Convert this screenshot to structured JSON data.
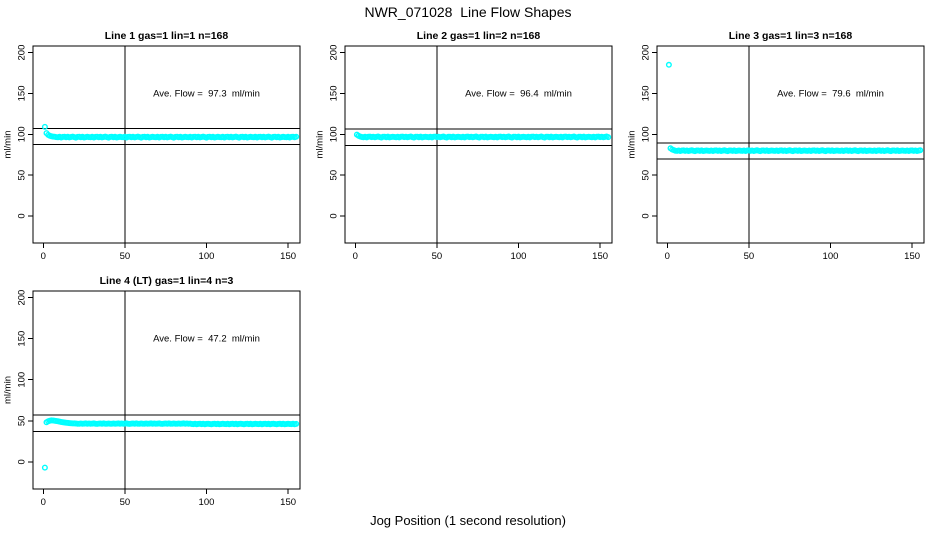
{
  "page": {
    "title": "NWR_071028  Line Flow Shapes",
    "x_axis_label": "Jog Position (1 second resolution)"
  },
  "colors": {
    "points": "#00ffff",
    "axis": "#000000",
    "background": "#ffffff"
  },
  "chart_data": [
    {
      "type": "scatter",
      "title": "Line 1 gas=1 lin=1 n=168",
      "annotation": "Ave. Flow =  97.3  ml/min",
      "ave_flow_ml_min": 97.3,
      "ylabel": "ml/min",
      "x_ticks": [
        0,
        50,
        100,
        150
      ],
      "y_ticks": [
        0,
        50,
        100,
        150,
        200
      ],
      "xlim": [
        -6.3,
        157.3
      ],
      "ylim": [
        -33,
        208
      ],
      "ref_lines_h": [
        107.3,
        87.3
      ],
      "ref_line_v": 50,
      "annotation_pos": [
        100,
        150
      ],
      "point_color": "#00ffff",
      "x_start": 1,
      "x_step": 1,
      "y": [
        109.0,
        101.5,
        99.2,
        98.2,
        97.6,
        97.2,
        96.9,
        96.6,
        96.3,
        97.0,
        96.1,
        96.8,
        97.1,
        96.4,
        96.9,
        96.2,
        96.7,
        97.2,
        96.5,
        96.0,
        96.8,
        97.0,
        96.3,
        97.1,
        96.1,
        96.6,
        96.9,
        96.6,
        96.3,
        97.0,
        96.1,
        96.8,
        97.1,
        96.4,
        96.9,
        96.2,
        96.7,
        97.2,
        96.5,
        96.0,
        96.8,
        97.0,
        96.3,
        97.1,
        96.1,
        96.6,
        96.9,
        96.6,
        96.3,
        97.0,
        96.1,
        96.8,
        97.1,
        96.4,
        96.9,
        96.2,
        96.7,
        97.2,
        96.5,
        96.0,
        96.8,
        97.0,
        96.3,
        97.1,
        96.1,
        96.6,
        96.9,
        96.6,
        96.3,
        97.0,
        96.1,
        96.8,
        97.1,
        96.4,
        96.9,
        96.2,
        96.7,
        97.2,
        96.5,
        96.0,
        96.8,
        97.0,
        96.3,
        97.1,
        96.1,
        96.6,
        96.9,
        96.6,
        96.3,
        97.0,
        96.1,
        96.8,
        97.1,
        96.4,
        96.9,
        96.2,
        96.7,
        97.2,
        96.5,
        96.0,
        96.8,
        97.0,
        96.3,
        97.1,
        96.1,
        96.6,
        96.9,
        96.6,
        96.3,
        97.0,
        96.1,
        96.8,
        97.1,
        96.4,
        96.9,
        96.2,
        96.7,
        97.2,
        96.5,
        96.0,
        96.8,
        97.0,
        96.3,
        97.1,
        96.1,
        96.6,
        96.9,
        96.6,
        96.3,
        97.0,
        96.1,
        96.8,
        97.1,
        96.4,
        96.9,
        96.2,
        96.7,
        97.2,
        96.5,
        96.0,
        96.8,
        97.0,
        96.3,
        97.1,
        96.1,
        96.6,
        96.9,
        96.6,
        96.3,
        97.0,
        96.1,
        96.8,
        97.1,
        96.4,
        96.9
      ]
    },
    {
      "type": "scatter",
      "title": "Line 2 gas=1 lin=2 n=168",
      "annotation": "Ave. Flow =  96.4  ml/min",
      "ave_flow_ml_min": 96.4,
      "ylabel": "ml/min",
      "x_ticks": [
        0,
        50,
        100,
        150
      ],
      "y_ticks": [
        0,
        50,
        100,
        150,
        200
      ],
      "xlim": [
        -6.3,
        157.3
      ],
      "ylim": [
        -33,
        208
      ],
      "ref_lines_h": [
        106.4,
        86.4
      ],
      "ref_line_v": 50,
      "annotation_pos": [
        100,
        150
      ],
      "point_color": "#00ffff",
      "x_start": 1,
      "x_step": 1,
      "y": [
        99.6,
        98.2,
        97.3,
        96.7,
        96.4,
        97.1,
        96.2,
        96.9,
        97.2,
        96.5,
        97.0,
        96.3,
        96.8,
        97.3,
        96.6,
        96.1,
        96.9,
        97.1,
        96.4,
        97.2,
        96.2,
        96.7,
        97.0,
        96.7,
        96.4,
        97.1,
        96.2,
        96.9,
        97.2,
        96.5,
        97.0,
        96.3,
        96.8,
        97.3,
        96.6,
        96.1,
        96.9,
        97.1,
        96.4,
        97.2,
        96.2,
        96.7,
        97.0,
        96.7,
        96.4,
        97.1,
        96.2,
        96.9,
        97.2,
        96.5,
        97.0,
        96.3,
        96.8,
        97.3,
        96.6,
        96.1,
        96.9,
        97.1,
        96.4,
        97.2,
        96.2,
        96.7,
        97.0,
        96.7,
        96.4,
        97.1,
        96.2,
        96.9,
        97.2,
        96.5,
        97.0,
        96.3,
        96.8,
        97.3,
        96.6,
        96.1,
        96.9,
        97.1,
        96.4,
        97.2,
        96.2,
        96.7,
        97.0,
        96.7,
        96.4,
        97.1,
        96.2,
        96.9,
        97.2,
        96.5,
        97.0,
        96.3,
        96.8,
        97.3,
        96.6,
        96.1,
        96.9,
        97.1,
        96.4,
        97.2,
        96.2,
        96.7,
        97.0,
        96.7,
        96.4,
        97.1,
        96.2,
        96.9,
        97.2,
        96.5,
        97.0,
        96.3,
        96.8,
        97.3,
        96.6,
        96.1,
        96.9,
        97.1,
        96.4,
        97.2,
        96.2,
        96.7,
        97.0,
        96.7,
        96.4,
        97.1,
        96.2,
        96.9,
        97.2,
        96.5,
        97.0,
        96.3,
        96.8,
        97.3,
        96.6,
        96.1,
        96.9,
        97.1,
        96.4,
        97.2,
        96.2,
        96.7,
        97.0,
        96.7,
        96.4,
        97.1,
        96.2,
        96.9,
        97.2,
        96.5,
        97.0,
        96.3,
        96.8,
        97.3,
        96.6
      ]
    },
    {
      "type": "scatter",
      "title": "Line 3 gas=1 lin=3 n=168",
      "annotation": "Ave. Flow =  79.6  ml/min",
      "ave_flow_ml_min": 79.6,
      "ylabel": "ml/min",
      "x_ticks": [
        0,
        50,
        100,
        150
      ],
      "y_ticks": [
        0,
        50,
        100,
        150,
        200
      ],
      "xlim": [
        -6.3,
        157.3
      ],
      "ylim": [
        -33,
        208
      ],
      "ref_lines_h": [
        89.6,
        69.6
      ],
      "ref_line_v": 50,
      "annotation_pos": [
        100,
        150
      ],
      "point_color": "#00ffff",
      "x_start": 1,
      "x_step": 1,
      "y": [
        185.0,
        82.8,
        81.4,
        80.6,
        79.9,
        79.7,
        80.2,
        79.5,
        80.1,
        80.3,
        79.7,
        80.1,
        79.6,
        80.0,
        80.4,
        79.8,
        79.4,
        80.1,
        80.2,
        79.7,
        80.3,
        79.5,
        79.9,
        80.1,
        79.9,
        79.7,
        80.2,
        79.5,
        80.1,
        80.3,
        79.7,
        80.1,
        79.6,
        80.0,
        80.4,
        79.8,
        79.4,
        80.1,
        80.2,
        79.7,
        80.3,
        79.5,
        79.9,
        80.1,
        79.9,
        79.7,
        80.2,
        79.5,
        80.1,
        80.3,
        79.7,
        80.1,
        79.6,
        80.0,
        80.4,
        79.8,
        79.4,
        80.1,
        80.2,
        79.7,
        80.3,
        79.5,
        79.9,
        80.1,
        79.9,
        79.7,
        80.2,
        79.5,
        80.1,
        80.3,
        79.7,
        80.1,
        79.6,
        80.0,
        80.4,
        79.8,
        79.4,
        80.1,
        80.2,
        79.7,
        80.3,
        79.5,
        79.9,
        80.1,
        79.9,
        79.7,
        80.2,
        79.5,
        80.1,
        80.3,
        79.7,
        80.1,
        79.6,
        80.0,
        80.4,
        79.8,
        79.4,
        80.1,
        80.2,
        79.7,
        80.3,
        79.5,
        79.9,
        80.1,
        79.9,
        79.7,
        80.2,
        79.5,
        80.1,
        80.3,
        79.7,
        80.1,
        79.6,
        80.0,
        80.4,
        79.8,
        79.4,
        80.1,
        80.2,
        79.7,
        80.3,
        79.5,
        79.9,
        80.1,
        79.9,
        79.7,
        80.2,
        79.5,
        80.1,
        80.3,
        79.7,
        80.1,
        79.6,
        80.0,
        80.4,
        79.8,
        79.4,
        80.1,
        80.2,
        79.7,
        80.3,
        79.5,
        79.9,
        80.1,
        79.9,
        79.7,
        80.2,
        79.5,
        80.1,
        80.3,
        79.7,
        80.1,
        79.6,
        80.0,
        80.4
      ]
    },
    {
      "type": "scatter",
      "title": "Line 4 (LT) gas=1 lin=4 n=3",
      "annotation": "Ave. Flow =  47.2  ml/min",
      "ave_flow_ml_min": 47.2,
      "ylabel": "ml/min",
      "x_ticks": [
        0,
        50,
        100,
        150
      ],
      "y_ticks": [
        0,
        50,
        100,
        150,
        200
      ],
      "xlim": [
        -6.3,
        157.3
      ],
      "ylim": [
        -33,
        208
      ],
      "ref_lines_h": [
        57.2,
        37.2
      ],
      "ref_line_v": 50,
      "annotation_pos": [
        100,
        150
      ],
      "point_color": "#00ffff",
      "x_start": 1,
      "x_step": 1,
      "y": [
        -7.0,
        48.3,
        49.4,
        50.1,
        50.5,
        50.4,
        50.1,
        49.8,
        49.4,
        49.0,
        48.6,
        48.3,
        48.0,
        47.7,
        47.4,
        47.2,
        47.0,
        46.9,
        46.8,
        46.7,
        46.5,
        46.4,
        46.7,
        46.3,
        46.6,
        46.8,
        46.4,
        46.7,
        46.3,
        46.6,
        46.8,
        46.5,
        46.2,
        46.6,
        46.7,
        46.4,
        46.8,
        46.3,
        46.5,
        46.7,
        46.5,
        46.4,
        46.7,
        46.3,
        46.6,
        46.8,
        46.4,
        46.7,
        46.3,
        46.6,
        46.8,
        46.5,
        46.2,
        46.6,
        46.7,
        46.4,
        46.8,
        46.3,
        46.5,
        46.7,
        46.5,
        46.4,
        46.7,
        46.3,
        46.6,
        46.8,
        46.4,
        46.7,
        46.3,
        46.6,
        46.8,
        46.5,
        46.2,
        46.6,
        46.7,
        46.4,
        46.8,
        46.3,
        46.5,
        46.7,
        46.5,
        46.4,
        46.7,
        46.3,
        46.6,
        46.8,
        46.4,
        46.7,
        46.3,
        46.6,
        46.1,
        46.0,
        46.3,
        45.9,
        46.2,
        46.4,
        46.0,
        46.3,
        45.9,
        46.2,
        46.4,
        46.1,
        45.8,
        46.2,
        46.3,
        46.0,
        46.4,
        45.9,
        46.1,
        46.3,
        46.1,
        46.0,
        46.3,
        45.9,
        46.2,
        46.4,
        46.0,
        46.3,
        45.9,
        46.2,
        46.4,
        46.1,
        45.8,
        46.2,
        46.3,
        46.0,
        46.4,
        45.9,
        46.1,
        46.3,
        46.1,
        46.0,
        46.3,
        45.9,
        46.2,
        46.4,
        46.0,
        46.3,
        45.9,
        46.2,
        46.4,
        46.1,
        45.8,
        46.2,
        46.3,
        46.0,
        46.4,
        45.9,
        46.1,
        46.3,
        46.1,
        46.0,
        46.3,
        45.9,
        46.2
      ]
    }
  ]
}
